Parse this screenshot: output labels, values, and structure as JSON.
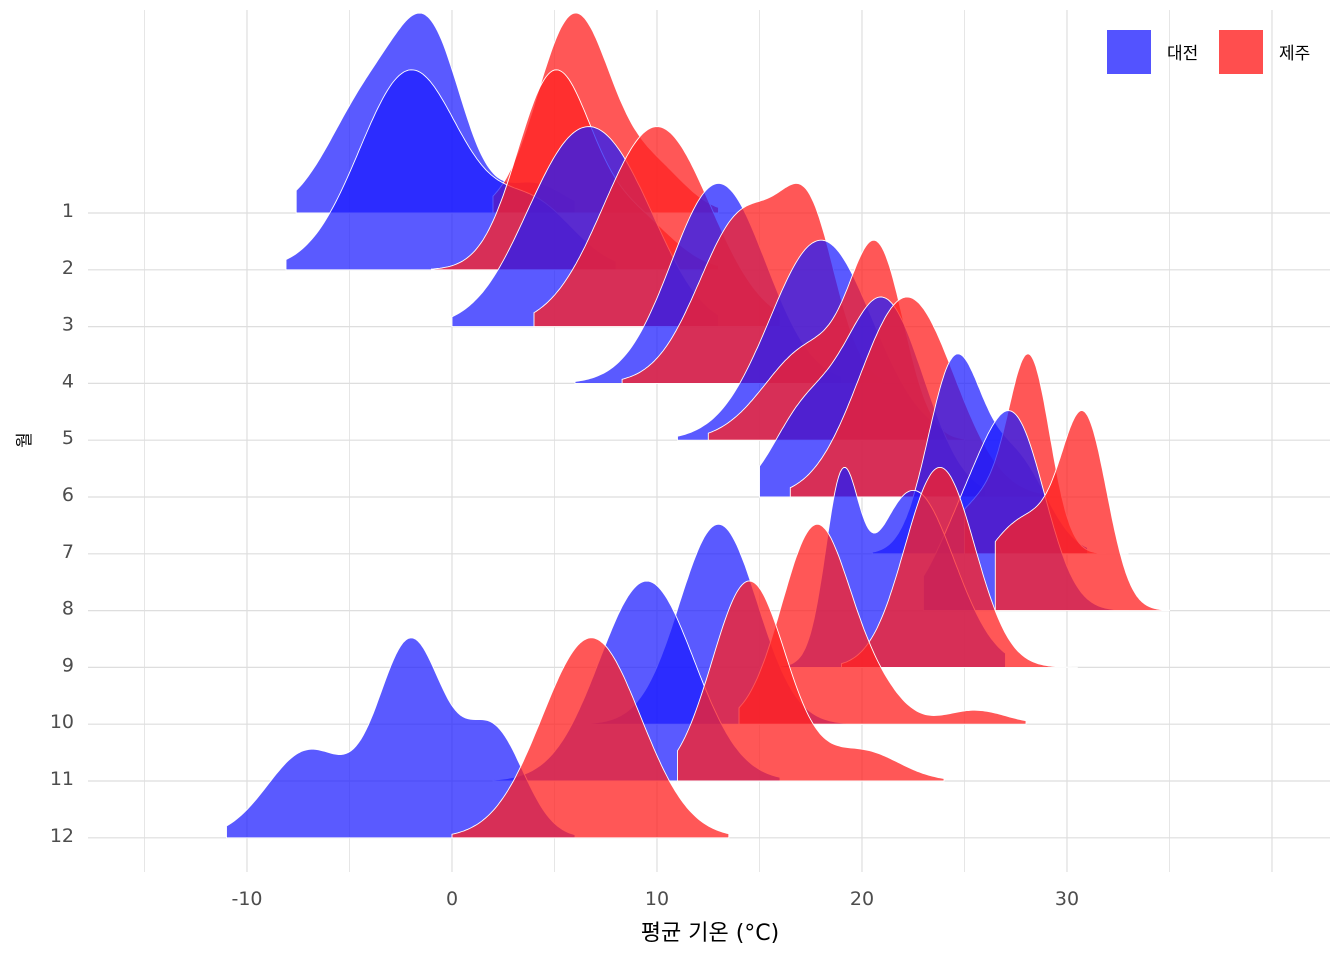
{
  "chart_data": {
    "type": "ridgeline",
    "title": "",
    "xlabel": "평균 기온 (°C)",
    "ylabel": "월",
    "xlim": [
      -18,
      42
    ],
    "x_ticks": [
      -10,
      0,
      10,
      20,
      30
    ],
    "x_tick_labels": [
      "-10",
      "0",
      "10",
      "20",
      "30"
    ],
    "categories": [
      "1",
      "2",
      "3",
      "4",
      "5",
      "6",
      "7",
      "8",
      "9",
      "10",
      "11",
      "12"
    ],
    "grid": true,
    "legend_position": "top-right",
    "series": [
      {
        "name": "대전",
        "color": "#1a1aff",
        "months": [
          {
            "month": "1",
            "peaks": [
              [
                -4,
                2.0,
                0.7
              ],
              [
                -1,
                1.6,
                0.95
              ],
              [
                4,
                1.5,
                0.18
              ]
            ],
            "range": [
              -7.6,
              6
            ]
          },
          {
            "month": "2",
            "peaks": [
              [
                -2,
                2.5,
                0.7
              ],
              [
                4,
                2.0,
                0.22
              ]
            ],
            "range": [
              -8.1,
              8
            ]
          },
          {
            "month": "3",
            "peaks": [
              [
                6,
                2.5,
                1.0
              ],
              [
                9,
                2.0,
                0.35
              ]
            ],
            "range": [
              0,
              13
            ]
          },
          {
            "month": "4",
            "peaks": [
              [
                13,
                2.3,
                1.0
              ]
            ],
            "range": [
              6,
              19
            ]
          },
          {
            "month": "5",
            "peaks": [
              [
                18,
                2.5,
                1.0
              ]
            ],
            "range": [
              11,
              24
            ]
          },
          {
            "month": "6",
            "peaks": [
              [
                21,
                2.0,
                1.0
              ],
              [
                17,
                1.5,
                0.35
              ]
            ],
            "range": [
              15,
              26
            ]
          },
          {
            "month": "7",
            "peaks": [
              [
                24.5,
                1.3,
                1.0
              ],
              [
                27.5,
                1.5,
                0.5
              ]
            ],
            "range": [
              20.5,
              31
            ]
          },
          {
            "month": "8",
            "peaks": [
              [
                27.5,
                1.5,
                1.0
              ],
              [
                25,
                1.5,
                0.45
              ]
            ],
            "range": [
              23,
              33
            ]
          },
          {
            "month": "9",
            "peaks": [
              [
                19,
                0.8,
                0.9
              ],
              [
                22.5,
                2.0,
                1.0
              ]
            ],
            "range": [
              15,
              27
            ]
          },
          {
            "month": "10",
            "peaks": [
              [
                13,
                1.9,
                1.0
              ]
            ],
            "range": [
              6,
              20
            ]
          },
          {
            "month": "11",
            "peaks": [
              [
                9.5,
                2.3,
                1.0
              ]
            ],
            "range": [
              2,
              16
            ]
          },
          {
            "month": "12",
            "peaks": [
              [
                -2,
                1.6,
                1.0
              ],
              [
                -7,
                2.0,
                0.45
              ],
              [
                2,
                1.5,
                0.55
              ]
            ],
            "range": [
              -11,
              6
            ]
          }
        ]
      },
      {
        "name": "제주",
        "color": "#ff2222",
        "months": [
          {
            "month": "1",
            "peaks": [
              [
                6,
                1.8,
                1.0
              ],
              [
                10,
                1.5,
                0.2
              ]
            ],
            "range": [
              2,
              13
            ]
          },
          {
            "month": "2",
            "peaks": [
              [
                5,
                1.8,
                1.0
              ],
              [
                9,
                1.8,
                0.25
              ]
            ],
            "range": [
              -1,
              13
            ]
          },
          {
            "month": "3",
            "peaks": [
              [
                10,
                2.6,
                1.0
              ]
            ],
            "range": [
              4,
              16
            ]
          },
          {
            "month": "4",
            "peaks": [
              [
                14.3,
                2.2,
                1.0
              ],
              [
                17.5,
                1.3,
                0.75
              ]
            ],
            "range": [
              8.3,
              21
            ]
          },
          {
            "month": "5",
            "peaks": [
              [
                20.8,
                1.3,
                0.9
              ],
              [
                17.5,
                2.2,
                0.5
              ]
            ],
            "range": [
              12.5,
              25
            ]
          },
          {
            "month": "6",
            "peaks": [
              [
                22.2,
                2.3,
                1.0
              ]
            ],
            "range": [
              16.5,
              29
            ]
          },
          {
            "month": "7",
            "peaks": [
              [
                28.2,
                1.0,
                1.0
              ],
              [
                26,
                1.5,
                0.3
              ]
            ],
            "range": [
              25,
              33
            ]
          },
          {
            "month": "8",
            "peaks": [
              [
                30.9,
                1.1,
                1.0
              ],
              [
                28,
                2.0,
                0.55
              ]
            ],
            "range": [
              26.5,
              35
            ]
          },
          {
            "month": "9",
            "peaks": [
              [
                23.8,
                1.7,
                1.0
              ]
            ],
            "range": [
              19,
              30.5
            ]
          },
          {
            "month": "10",
            "peaks": [
              [
                17.8,
                1.7,
                1.0
              ],
              [
                25.5,
                1.5,
                0.07
              ],
              [
                21,
                1.2,
                0.1
              ]
            ],
            "range": [
              14,
              28
            ]
          },
          {
            "month": "11",
            "peaks": [
              [
                14.5,
                1.8,
                1.0
              ],
              [
                20,
                1.8,
                0.15
              ]
            ],
            "range": [
              11,
              24
            ]
          },
          {
            "month": "12",
            "peaks": [
              [
                6.8,
                2.4,
                1.0
              ]
            ],
            "range": [
              0,
              13.5
            ]
          }
        ]
      }
    ]
  }
}
